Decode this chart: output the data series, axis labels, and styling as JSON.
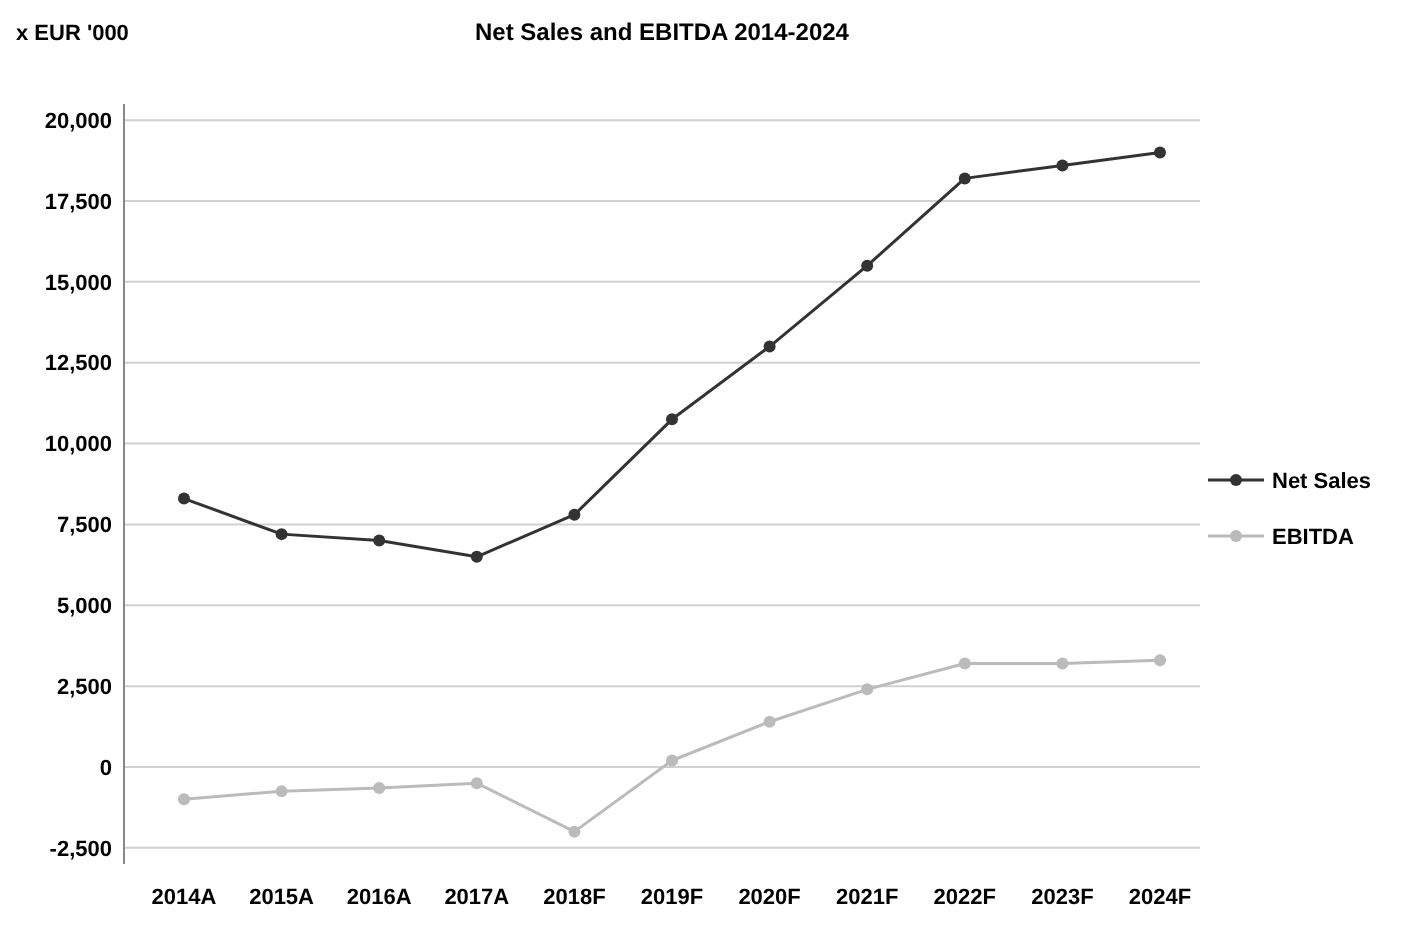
{
  "chart_data": {
    "type": "line",
    "title": "Net Sales and EBITDA 2014-2024",
    "ylabel": "x EUR '000",
    "categories": [
      "2014A",
      "2015A",
      "2016A",
      "2017A",
      "2018F",
      "2019F",
      "2020F",
      "2021F",
      "2022F",
      "2023F",
      "2024F"
    ],
    "series": [
      {
        "name": "Net Sales",
        "color": "#333333",
        "values": [
          8300,
          7200,
          7000,
          6500,
          7800,
          10750,
          13000,
          15500,
          18200,
          18600,
          19000
        ]
      },
      {
        "name": "EBITDA",
        "color": "#bbbbbb",
        "values": [
          -1000,
          -750,
          -650,
          -500,
          -2000,
          200,
          1400,
          2400,
          3200,
          3200,
          3300
        ]
      }
    ],
    "ylim": [
      -3000,
      20500
    ],
    "yticks": [
      {
        "value": -2500,
        "label": "-2,500"
      },
      {
        "value": 0,
        "label": "0"
      },
      {
        "value": 2500,
        "label": "2,500"
      },
      {
        "value": 5000,
        "label": "5,000"
      },
      {
        "value": 7500,
        "label": "7,500"
      },
      {
        "value": 10000,
        "label": "10,000"
      },
      {
        "value": 12500,
        "label": "12,500"
      },
      {
        "value": 15000,
        "label": "15,000"
      },
      {
        "value": 17500,
        "label": "17,500"
      },
      {
        "value": 20000,
        "label": "20,000"
      }
    ],
    "grid": "y",
    "legend": "right",
    "marker": "circle",
    "line_style": "solid"
  }
}
